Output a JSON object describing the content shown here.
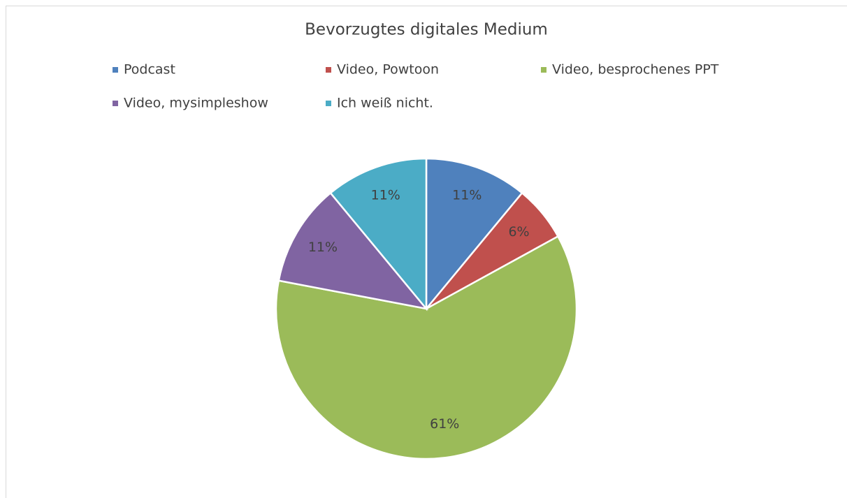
{
  "chart_data": {
    "type": "pie",
    "title": "Bevorzugtes digitales Medium",
    "categories": [
      "Podcast",
      "Video, Powtoon",
      "Video, besprochenes PPT",
      "Video, mysimpleshow",
      "Ich weiß nicht."
    ],
    "values": [
      11,
      6,
      61,
      11,
      11
    ],
    "value_labels": [
      "11%",
      "6%",
      "61%",
      "11%",
      "11%"
    ],
    "colors": [
      "#4f81bd",
      "#c0504d",
      "#9bbb59",
      "#8064a2",
      "#4bacc6"
    ],
    "legend": "top"
  }
}
